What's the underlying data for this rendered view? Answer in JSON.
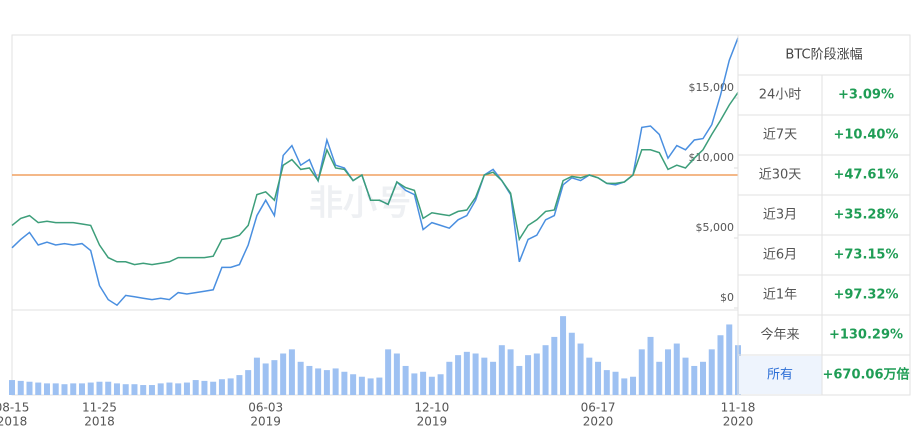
{
  "chart_data": {
    "type": "line",
    "watermark": "非小号",
    "categories": [
      "08-15",
      null,
      null,
      null,
      null,
      null,
      null,
      null,
      null,
      null,
      "11-25",
      null,
      null,
      null,
      null,
      null,
      null,
      null,
      null,
      null,
      null,
      null,
      null,
      null,
      null,
      null,
      null,
      null,
      null,
      "06-03",
      null,
      null,
      null,
      null,
      null,
      null,
      null,
      null,
      null,
      null,
      null,
      null,
      null,
      null,
      null,
      null,
      null,
      null,
      "12-10",
      null,
      null,
      null,
      null,
      null,
      null,
      null,
      null,
      null,
      null,
      null,
      null,
      null,
      null,
      null,
      null,
      null,
      null,
      "06-17",
      null,
      null,
      null,
      null,
      null,
      null,
      null,
      null,
      null,
      null,
      null,
      null,
      null,
      null,
      null,
      "11-18"
    ],
    "x_tick_years": [
      "2018",
      null,
      null,
      null,
      null,
      null,
      null,
      null,
      null,
      null,
      "2018",
      null,
      null,
      null,
      null,
      null,
      null,
      null,
      null,
      null,
      null,
      null,
      null,
      null,
      null,
      null,
      null,
      null,
      null,
      "2019",
      null,
      null,
      null,
      null,
      null,
      null,
      null,
      null,
      null,
      null,
      null,
      null,
      null,
      null,
      null,
      null,
      null,
      null,
      "2019",
      null,
      null,
      null,
      null,
      null,
      null,
      null,
      null,
      null,
      null,
      null,
      null,
      null,
      null,
      null,
      null,
      null,
      null,
      "2020",
      null,
      null,
      null,
      null,
      null,
      null,
      null,
      null,
      null,
      null,
      null,
      null,
      null,
      null,
      null,
      "2020"
    ],
    "series": [
      {
        "color": "#4a8fe0",
        "values": [
          4300,
          4900,
          5400,
          4500,
          4700,
          4500,
          4600,
          4500,
          4600,
          4100,
          1600,
          600,
          200,
          900,
          800,
          700,
          600,
          700,
          600,
          1100,
          1000,
          1100,
          1200,
          1300,
          2900,
          2900,
          3100,
          4500,
          6600,
          7700,
          6600,
          10900,
          11600,
          10200,
          10600,
          9100,
          12000,
          10200,
          10000,
          9100,
          9500,
          7700,
          7700,
          7400,
          9000,
          8400,
          8100,
          5600,
          6100,
          5900,
          5700,
          6300,
          6600,
          7700,
          9500,
          9900,
          9100,
          8100,
          3300,
          4900,
          5200,
          6300,
          6600,
          8800,
          9300,
          9100,
          9500,
          9300,
          8900,
          8800,
          9000,
          9500,
          12900,
          13000,
          12400,
          10700,
          11600,
          11300,
          12000,
          12100,
          13100,
          15200,
          17700,
          19300
        ]
      },
      {
        "color": "#3d9e7a",
        "values": [
          5900,
          6400,
          6600,
          6100,
          6200,
          6100,
          6100,
          6100,
          6000,
          5900,
          4500,
          3600,
          3300,
          3300,
          3100,
          3200,
          3100,
          3200,
          3300,
          3600,
          3600,
          3600,
          3600,
          3700,
          4900,
          5000,
          5200,
          5900,
          8100,
          8300,
          7700,
          10200,
          10600,
          9900,
          10000,
          9100,
          11300,
          10000,
          9900,
          9100,
          9500,
          7700,
          7700,
          7400,
          9000,
          8600,
          8400,
          6400,
          6800,
          6700,
          6600,
          6900,
          7000,
          7900,
          9500,
          9700,
          9100,
          8200,
          4900,
          5900,
          6300,
          6900,
          7000,
          9100,
          9400,
          9300,
          9500,
          9300,
          8900,
          8900,
          9000,
          9500,
          11300,
          11300,
          11100,
          9900,
          10200,
          10000,
          10700,
          11300,
          12400,
          13400,
          14500,
          15400
        ]
      }
    ],
    "reference_line": {
      "value": 9500,
      "color": "#f0a060"
    },
    "volume": {
      "color": "#9ec1f2",
      "values": [
        18,
        17,
        16,
        15,
        14,
        14,
        13,
        14,
        14,
        15,
        16,
        16,
        14,
        13,
        13,
        12,
        12,
        14,
        15,
        14,
        15,
        18,
        17,
        16,
        19,
        20,
        24,
        30,
        45,
        38,
        42,
        50,
        55,
        40,
        35,
        32,
        30,
        32,
        28,
        25,
        22,
        20,
        21,
        55,
        50,
        35,
        26,
        28,
        22,
        25,
        40,
        48,
        52,
        50,
        45,
        40,
        60,
        55,
        35,
        48,
        50,
        60,
        70,
        95,
        75,
        62,
        45,
        40,
        30,
        28,
        20,
        22,
        55,
        70,
        40,
        55,
        62,
        45,
        35,
        40,
        55,
        72,
        85,
        60
      ]
    },
    "volume_ylim": [
      0,
      100
    ],
    "ylim": [
      0,
      19500
    ],
    "yticks": [
      {
        "value": 0,
        "label": "$0"
      },
      {
        "value": 5000,
        "label": "$5,000"
      },
      {
        "value": 10000,
        "label": "$10,000"
      },
      {
        "value": 15000,
        "label": "$15,000"
      }
    ],
    "table": {
      "title": "BTC阶段涨幅",
      "rows": [
        [
          "24小时",
          "+3.09%"
        ],
        [
          "近7天",
          "+10.40%"
        ],
        [
          "近30天",
          "+47.61%"
        ],
        [
          "近3月",
          "+35.28%"
        ],
        [
          "近6月",
          "+73.15%"
        ],
        [
          "近1年",
          "+97.32%"
        ],
        [
          "今年来",
          "+130.29%"
        ],
        [
          "所有",
          "+670.06万倍"
        ]
      ]
    }
  }
}
